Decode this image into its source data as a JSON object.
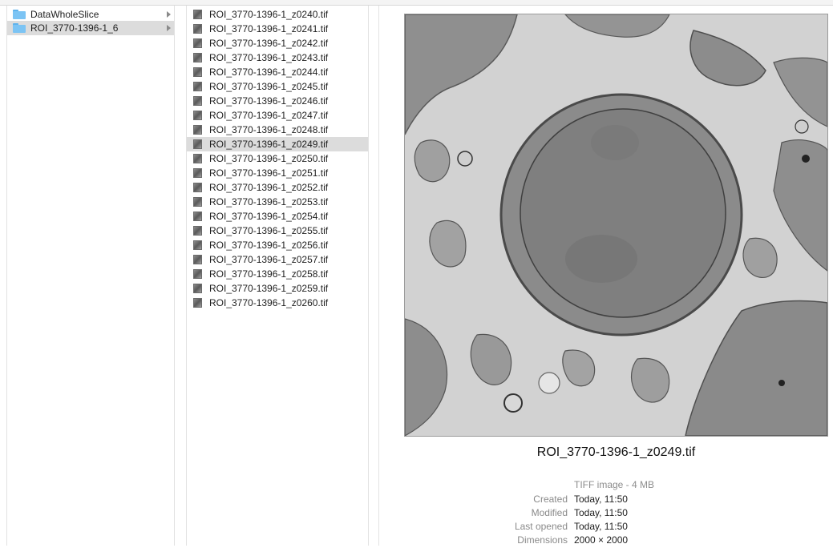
{
  "sidebar_folders": [
    {
      "label": "DataWholeSlice",
      "selected": false
    },
    {
      "label": "ROI_3770-1396-1_6",
      "selected": true
    }
  ],
  "files": [
    {
      "label": "ROI_3770-1396-1_z0240.tif"
    },
    {
      "label": "ROI_3770-1396-1_z0241.tif"
    },
    {
      "label": "ROI_3770-1396-1_z0242.tif"
    },
    {
      "label": "ROI_3770-1396-1_z0243.tif"
    },
    {
      "label": "ROI_3770-1396-1_z0244.tif"
    },
    {
      "label": "ROI_3770-1396-1_z0245.tif"
    },
    {
      "label": "ROI_3770-1396-1_z0246.tif"
    },
    {
      "label": "ROI_3770-1396-1_z0247.tif"
    },
    {
      "label": "ROI_3770-1396-1_z0248.tif"
    },
    {
      "label": "ROI_3770-1396-1_z0249.tif",
      "selected": true
    },
    {
      "label": "ROI_3770-1396-1_z0250.tif"
    },
    {
      "label": "ROI_3770-1396-1_z0251.tif"
    },
    {
      "label": "ROI_3770-1396-1_z0252.tif"
    },
    {
      "label": "ROI_3770-1396-1_z0253.tif"
    },
    {
      "label": "ROI_3770-1396-1_z0254.tif"
    },
    {
      "label": "ROI_3770-1396-1_z0255.tif"
    },
    {
      "label": "ROI_3770-1396-1_z0256.tif"
    },
    {
      "label": "ROI_3770-1396-1_z0257.tif"
    },
    {
      "label": "ROI_3770-1396-1_z0258.tif"
    },
    {
      "label": "ROI_3770-1396-1_z0259.tif"
    },
    {
      "label": "ROI_3770-1396-1_z0260.tif"
    }
  ],
  "preview": {
    "filename": "ROI_3770-1396-1_z0249.tif",
    "kind": "TIFF image - 4 MB",
    "info": [
      {
        "key": "Created",
        "value": "Today, 11:50"
      },
      {
        "key": "Modified",
        "value": "Today, 11:50"
      },
      {
        "key": "Last opened",
        "value": "Today, 11:50"
      },
      {
        "key": "Dimensions",
        "value": "2000 × 2000"
      }
    ]
  },
  "icons": {
    "folder": "folder-icon",
    "file": "tiff-file-icon",
    "disclosure": "chevron-right-icon"
  },
  "colors": {
    "selection": "#dcdcdc",
    "folder_blue": "#7cc4f4",
    "micrograph_gray": "#cdcdcd"
  }
}
